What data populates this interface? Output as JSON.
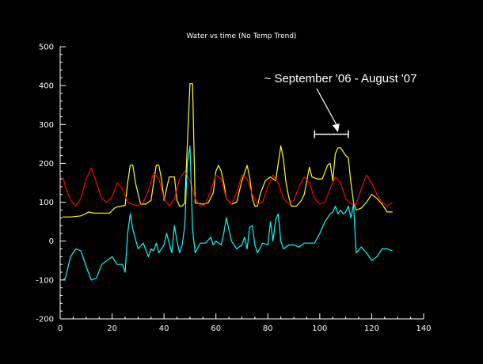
{
  "chart_data": {
    "type": "line",
    "title": "Water vs time (No Temp Trend)",
    "xlabel": "",
    "ylabel": "",
    "xlim": [
      0,
      140
    ],
    "ylim": [
      -200,
      500
    ],
    "xticks": [
      0,
      20,
      40,
      60,
      80,
      100,
      120,
      140
    ],
    "yticks": [
      -200,
      -100,
      0,
      100,
      200,
      300,
      400,
      500
    ],
    "grid": false,
    "background": "#000000",
    "annotation": {
      "text": "~ September '06 - August '07",
      "arrow_target": [
        107,
        280
      ],
      "span": [
        98,
        111
      ],
      "span_y": 275
    },
    "series": [
      {
        "color": "#ffff00",
        "x": [
          1,
          4,
          8,
          11,
          13,
          16,
          19,
          21,
          22,
          25,
          26,
          27,
          28,
          29,
          31,
          33,
          35,
          36,
          37,
          38,
          39,
          40,
          42,
          44,
          45,
          46,
          47,
          48,
          49,
          50,
          51,
          52,
          55,
          57,
          59,
          60,
          61,
          62,
          63,
          64,
          66,
          68,
          70,
          72,
          73,
          74,
          75,
          76,
          77,
          79,
          81,
          83,
          84,
          85,
          86,
          87,
          88,
          89,
          91,
          93,
          94,
          95,
          96,
          97,
          99,
          101,
          103,
          104,
          105,
          106,
          107,
          108,
          109,
          110,
          111,
          112,
          113,
          114,
          116,
          118,
          120,
          122,
          124,
          126,
          128
        ],
        "y": [
          62,
          62,
          65,
          75,
          72,
          72,
          72,
          85,
          88,
          92,
          150,
          195,
          195,
          150,
          95,
          95,
          105,
          150,
          195,
          195,
          160,
          105,
          165,
          165,
          105,
          90,
          90,
          98,
          250,
          405,
          405,
          98,
          95,
          98,
          125,
          180,
          195,
          180,
          150,
          110,
          95,
          100,
          155,
          195,
          165,
          110,
          90,
          90,
          120,
          155,
          165,
          155,
          200,
          245,
          210,
          150,
          115,
          90,
          90,
          105,
          120,
          155,
          190,
          165,
          160,
          160,
          195,
          200,
          155,
          225,
          240,
          240,
          230,
          220,
          215,
          150,
          100,
          80,
          85,
          100,
          120,
          110,
          95,
          75,
          75
        ]
      },
      {
        "color": "#ff0000",
        "x": [
          1,
          2,
          4,
          6,
          8,
          10,
          12,
          14,
          16,
          18,
          20,
          22,
          24,
          26,
          28,
          30,
          32,
          34,
          36,
          38,
          40,
          42,
          44,
          46,
          48,
          50,
          52,
          54,
          56,
          58,
          60,
          62,
          64,
          66,
          68,
          70,
          72,
          74,
          76,
          78,
          80,
          82,
          84,
          86,
          88,
          90,
          92,
          94,
          96,
          98,
          100,
          102,
          104,
          106,
          108,
          110,
          112,
          114,
          116,
          118,
          120,
          122,
          124,
          126,
          128
        ],
        "y": [
          165,
          140,
          105,
          90,
          110,
          160,
          188,
          150,
          110,
          100,
          115,
          150,
          135,
          100,
          95,
          90,
          100,
          130,
          175,
          160,
          110,
          90,
          110,
          160,
          180,
          155,
          110,
          90,
          95,
          130,
          170,
          160,
          110,
          95,
          125,
          170,
          160,
          120,
          95,
          100,
          140,
          170,
          150,
          110,
          95,
          105,
          140,
          165,
          150,
          110,
          95,
          100,
          135,
          165,
          150,
          110,
          95,
          95,
          135,
          170,
          150,
          120,
          100,
          90,
          100
        ]
      },
      {
        "color": "#00ffff",
        "x": [
          1,
          2,
          4,
          6,
          8,
          10,
          12,
          14,
          16,
          18,
          20,
          22,
          24,
          25,
          26,
          27,
          28,
          30,
          32,
          34,
          35,
          36,
          37,
          38,
          40,
          41,
          42,
          43,
          44,
          45,
          46,
          47,
          48,
          49,
          50,
          51,
          52,
          54,
          56,
          58,
          59,
          60,
          62,
          63,
          64,
          66,
          68,
          70,
          71,
          72,
          73,
          74,
          75,
          76,
          78,
          80,
          81,
          82,
          83,
          84,
          85,
          86,
          88,
          90,
          92,
          94,
          96,
          98,
          100,
          102,
          104,
          105,
          106,
          107,
          108,
          109,
          110,
          111,
          112,
          113,
          114,
          116,
          118,
          120,
          122,
          124,
          126,
          128
        ],
        "y": [
          -100,
          -95,
          -40,
          -20,
          -25,
          -65,
          -100,
          -95,
          -60,
          -50,
          -40,
          -60,
          -60,
          -80,
          20,
          70,
          30,
          -20,
          -5,
          -40,
          -20,
          -25,
          -5,
          -30,
          -10,
          20,
          -5,
          -30,
          40,
          0,
          -30,
          -10,
          40,
          200,
          245,
          30,
          -30,
          -5,
          -5,
          10,
          -10,
          0,
          -10,
          20,
          60,
          0,
          -20,
          -10,
          10,
          -20,
          35,
          40,
          -10,
          -30,
          -5,
          -10,
          50,
          0,
          55,
          70,
          0,
          -20,
          -10,
          -10,
          -15,
          -5,
          -5,
          -5,
          20,
          50,
          70,
          75,
          90,
          70,
          80,
          70,
          75,
          90,
          60,
          95,
          -30,
          -15,
          -30,
          -50,
          -40,
          -20,
          -20,
          -25
        ]
      }
    ]
  }
}
